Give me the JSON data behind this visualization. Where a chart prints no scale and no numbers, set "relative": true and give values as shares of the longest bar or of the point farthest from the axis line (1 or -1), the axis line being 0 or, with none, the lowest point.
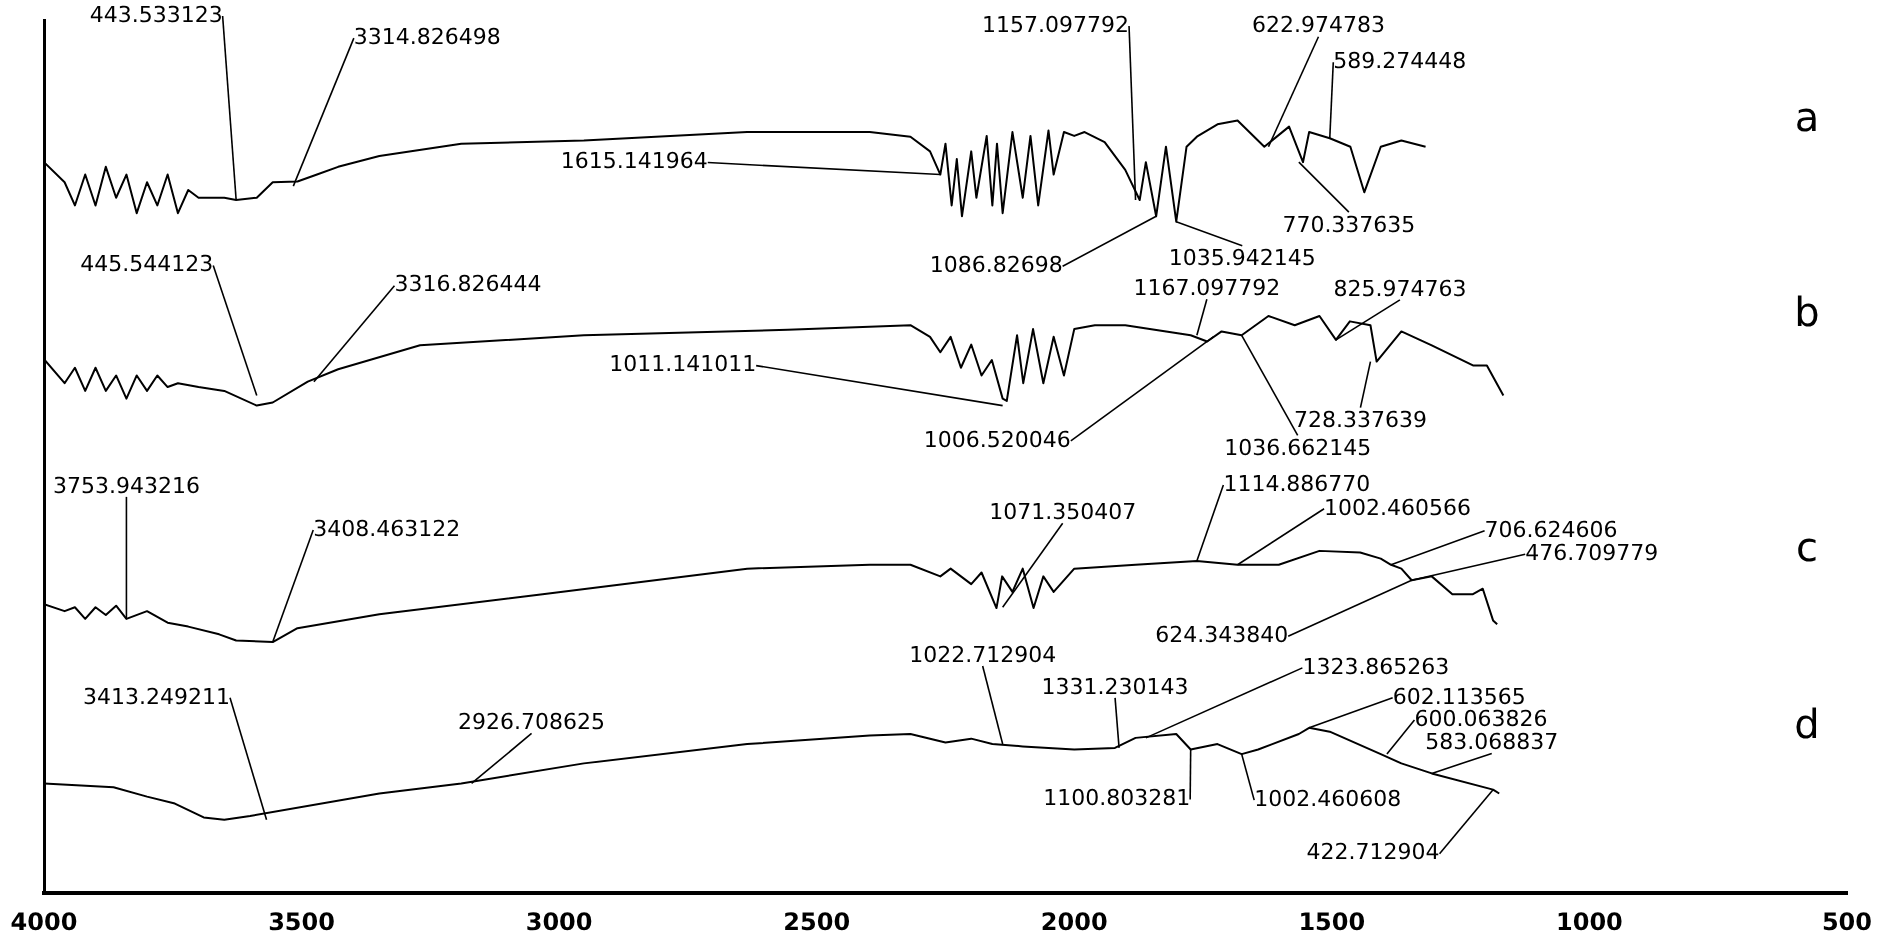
{
  "chart_data": {
    "type": "line",
    "relative": true,
    "xlim": [
      4000,
      500
    ],
    "xticks": [
      4000,
      3500,
      3000,
      2500,
      2000,
      1500,
      1000,
      500
    ],
    "series": [
      {
        "name": "a",
        "color": "#000000",
        "x": [
          4000,
          3960,
          3940,
          3920,
          3900,
          3880,
          3860,
          3840,
          3820,
          3800,
          3780,
          3760,
          3740,
          3720,
          3700,
          3680,
          3650,
          3627,
          3587,
          3556,
          3508,
          3470,
          3429,
          3349,
          3190,
          2952,
          2635,
          2397,
          2318,
          2280,
          2260,
          2250,
          2238,
          2228,
          2218,
          2200,
          2190,
          2170,
          2159,
          2150,
          2139,
          2120,
          2100,
          2085,
          2070,
          2050,
          2040,
          2020,
          2000,
          1980,
          1941,
          1901,
          1873,
          1861,
          1841,
          1822,
          1802,
          1782,
          1762,
          1722,
          1683,
          1631,
          1583,
          1556,
          1544,
          1504,
          1464,
          1437,
          1405,
          1365,
          1318
        ],
        "values": [
          0.946,
          0.92,
          0.89,
          0.93,
          0.89,
          0.94,
          0.9,
          0.93,
          0.88,
          0.92,
          0.89,
          0.93,
          0.88,
          0.91,
          0.9,
          0.9,
          0.9,
          0.897,
          0.9,
          0.92,
          0.921,
          0.93,
          0.94,
          0.954,
          0.97,
          0.974,
          0.985,
          0.985,
          0.979,
          0.96,
          0.93,
          0.97,
          0.89,
          0.95,
          0.876,
          0.96,
          0.9,
          0.98,
          0.89,
          0.97,
          0.88,
          0.985,
          0.9,
          0.98,
          0.89,
          0.987,
          0.93,
          0.985,
          0.98,
          0.985,
          0.972,
          0.936,
          0.897,
          0.946,
          0.876,
          0.966,
          0.869,
          0.966,
          0.979,
          0.995,
          1.0,
          0.966,
          0.992,
          0.946,
          0.985,
          0.977,
          0.966,
          0.907,
          0.966,
          0.974,
          0.966
        ]
      },
      {
        "name": "b",
        "color": "#000000",
        "x": [
          4000,
          3960,
          3940,
          3920,
          3900,
          3880,
          3860,
          3840,
          3820,
          3800,
          3780,
          3760,
          3740,
          3700,
          3650,
          3587,
          3556,
          3488,
          3429,
          3270,
          2952,
          2556,
          2318,
          2280,
          2260,
          2240,
          2220,
          2200,
          2180,
          2160,
          2139,
          2131,
          2111,
          2099,
          2080,
          2060,
          2040,
          2020,
          2000,
          1960,
          1901,
          1774,
          1742,
          1714,
          1675,
          1623,
          1572,
          1524,
          1492,
          1465,
          1425,
          1413,
          1365,
          1306,
          1226,
          1199,
          1167
        ],
        "values": [
          0.691,
          0.66,
          0.68,
          0.65,
          0.68,
          0.65,
          0.67,
          0.64,
          0.67,
          0.65,
          0.67,
          0.655,
          0.66,
          0.655,
          0.65,
          0.631,
          0.635,
          0.662,
          0.678,
          0.709,
          0.722,
          0.729,
          0.735,
          0.72,
          0.7,
          0.72,
          0.68,
          0.71,
          0.67,
          0.69,
          0.64,
          0.637,
          0.722,
          0.66,
          0.73,
          0.66,
          0.72,
          0.67,
          0.73,
          0.735,
          0.735,
          0.722,
          0.714,
          0.727,
          0.722,
          0.747,
          0.735,
          0.747,
          0.716,
          0.74,
          0.735,
          0.688,
          0.727,
          0.709,
          0.683,
          0.683,
          0.644
        ]
      },
      {
        "name": "c",
        "color": "#000000",
        "x": [
          4000,
          3960,
          3940,
          3920,
          3900,
          3880,
          3860,
          3840,
          3800,
          3760,
          3720,
          3660,
          3627,
          3556,
          3508,
          3349,
          3032,
          2635,
          2397,
          2318,
          2260,
          2240,
          2200,
          2180,
          2151,
          2140,
          2120,
          2100,
          2079,
          2060,
          2040,
          2000,
          1881,
          1762,
          1683,
          1603,
          1524,
          1445,
          1405,
          1385,
          1365,
          1345,
          1306,
          1266,
          1226,
          1207,
          1187,
          1179
        ],
        "values": [
          0.374,
          0.365,
          0.37,
          0.355,
          0.37,
          0.36,
          0.372,
          0.355,
          0.365,
          0.35,
          0.345,
          0.335,
          0.327,
          0.325,
          0.343,
          0.361,
          0.387,
          0.42,
          0.425,
          0.425,
          0.41,
          0.42,
          0.4,
          0.415,
          0.369,
          0.41,
          0.39,
          0.42,
          0.369,
          0.41,
          0.39,
          0.42,
          0.425,
          0.43,
          0.425,
          0.425,
          0.443,
          0.441,
          0.433,
          0.425,
          0.42,
          0.405,
          0.41,
          0.387,
          0.387,
          0.394,
          0.353,
          0.348
        ]
      },
      {
        "name": "d",
        "color": "#000000",
        "x": [
          4000,
          3865,
          3800,
          3746,
          3690,
          3650,
          3600,
          3349,
          3190,
          2952,
          2635,
          2397,
          2318,
          2250,
          2200,
          2159,
          2100,
          2000,
          1921,
          1881,
          1802,
          1774,
          1722,
          1675,
          1643,
          1564,
          1544,
          1504,
          1405,
          1365,
          1306,
          1187,
          1175
        ],
        "values": [
          0.142,
          0.137,
          0.125,
          0.116,
          0.098,
          0.095,
          0.1,
          0.129,
          0.142,
          0.168,
          0.193,
          0.204,
          0.206,
          0.195,
          0.2,
          0.193,
          0.19,
          0.186,
          0.188,
          0.201,
          0.206,
          0.186,
          0.193,
          0.18,
          0.186,
          0.206,
          0.214,
          0.209,
          0.18,
          0.168,
          0.155,
          0.134,
          0.129
        ]
      }
    ],
    "annotations": [
      {
        "text": "443.533123",
        "x": 3627,
        "y": 0.897
      },
      {
        "text": "3314.826498",
        "x": 3516,
        "y": 0.915
      },
      {
        "text": "1615.141964",
        "x": 2260,
        "y": 0.93
      },
      {
        "text": "1157.097792",
        "x": 1881,
        "y": 0.897
      },
      {
        "text": "622.974783",
        "x": 1623,
        "y": 0.966
      },
      {
        "text": "589.274448",
        "x": 1504,
        "y": 0.977
      },
      {
        "text": "1086.82698",
        "x": 1841,
        "y": 0.876
      },
      {
        "text": "770.337635",
        "x": 1564,
        "y": 0.946
      },
      {
        "text": "1035.942145",
        "x": 1802,
        "y": 0.869
      },
      {
        "text": "445.544123",
        "x": 3587,
        "y": 0.644
      },
      {
        "text": "3316.826444",
        "x": 3476,
        "y": 0.662
      },
      {
        "text": "1011.141011",
        "x": 2139,
        "y": 0.631
      },
      {
        "text": "1167.097792",
        "x": 1762,
        "y": 0.722
      },
      {
        "text": "1006.520046",
        "x": 1730,
        "y": 0.72
      },
      {
        "text": "825.974763",
        "x": 1492,
        "y": 0.716
      },
      {
        "text": "728.337639",
        "x": 1425,
        "y": 0.688
      },
      {
        "text": "1036.662145",
        "x": 1675,
        "y": 0.722
      },
      {
        "text": "3753.943216",
        "x": 3840,
        "y": 0.355
      },
      {
        "text": "3408.463122",
        "x": 3556,
        "y": 0.325
      },
      {
        "text": "1071.350407",
        "x": 2139,
        "y": 0.37
      },
      {
        "text": "1114.886770",
        "x": 1762,
        "y": 0.43
      },
      {
        "text": "1002.460566",
        "x": 1683,
        "y": 0.425
      },
      {
        "text": "706.624606",
        "x": 1385,
        "y": 0.425
      },
      {
        "text": "476.709779",
        "x": 1345,
        "y": 0.405
      },
      {
        "text": "624.343840",
        "x": 1345,
        "y": 0.405
      },
      {
        "text": "1022.712904",
        "x": 2139,
        "y": 0.193
      },
      {
        "text": "1331.230143",
        "x": 1913,
        "y": 0.188
      },
      {
        "text": "1323.865263",
        "x": 1861,
        "y": 0.201
      },
      {
        "text": "3413.249211",
        "x": 3568,
        "y": 0.095
      },
      {
        "text": "2926.708625",
        "x": 3170,
        "y": 0.142
      },
      {
        "text": "602.113565",
        "x": 1544,
        "y": 0.214
      },
      {
        "text": "600.063826",
        "x": 1393,
        "y": 0.18
      },
      {
        "text": "583.068837",
        "x": 1306,
        "y": 0.155
      },
      {
        "text": "1100.803281",
        "x": 1774,
        "y": 0.186
      },
      {
        "text": "1002.460608",
        "x": 1675,
        "y": 0.18
      },
      {
        "text": "422.712904",
        "x": 1187,
        "y": 0.134
      }
    ]
  }
}
